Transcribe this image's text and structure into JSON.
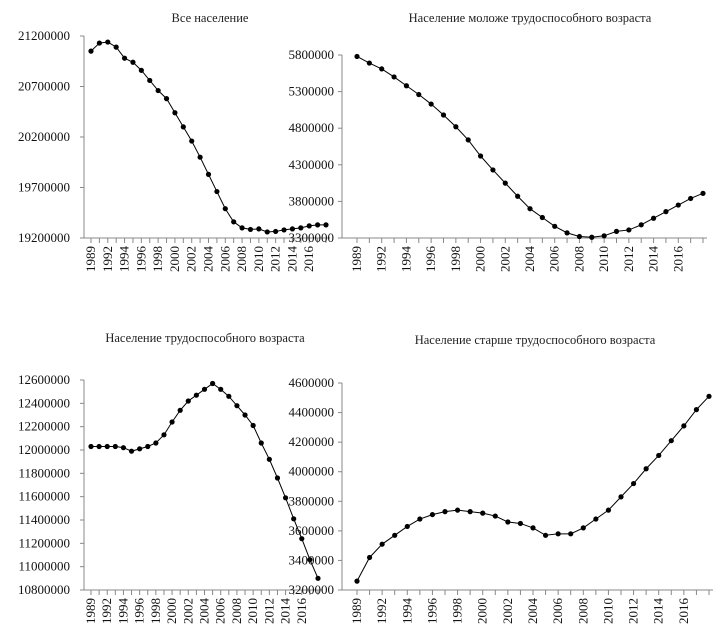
{
  "chart_data": [
    {
      "type": "line",
      "title": "Все население",
      "color": "#000000",
      "categories": [
        "1989",
        null,
        "1992",
        null,
        "1994",
        null,
        "1996",
        null,
        "1998",
        null,
        "2000",
        null,
        "2002",
        null,
        "2004",
        null,
        "2006",
        null,
        "2008",
        null,
        "2010",
        null,
        "2012",
        null,
        "2014",
        null,
        "2016",
        null,
        null
      ],
      "values": [
        21050000,
        21130000,
        21140000,
        21090000,
        20980000,
        20940000,
        20860000,
        20760000,
        20660000,
        20580000,
        20440000,
        20300000,
        20160000,
        20000000,
        19830000,
        19660000,
        19490000,
        19360000,
        19300000,
        19285000,
        19290000,
        19260000,
        19265000,
        19280000,
        19290000,
        19300000,
        19320000,
        19330000,
        19330000
      ],
      "ylim": [
        19200000,
        21200000
      ],
      "yticks": [
        19200000,
        19700000,
        20200000,
        20700000,
        21200000
      ]
    },
    {
      "type": "line",
      "title": "Население моложе трудоспособного возраста",
      "color": "#000000",
      "categories": [
        "1989",
        null,
        "1992",
        null,
        "1994",
        null,
        "1996",
        null,
        "1998",
        null,
        "2000",
        null,
        "2002",
        null,
        "2004",
        null,
        "2006",
        null,
        "2008",
        null,
        "2010",
        null,
        "2012",
        null,
        "2014",
        null,
        "2016",
        null,
        null
      ],
      "values": [
        5780000,
        5690000,
        5610000,
        5500000,
        5380000,
        5260000,
        5130000,
        4980000,
        4820000,
        4640000,
        4420000,
        4230000,
        4050000,
        3870000,
        3700000,
        3580000,
        3460000,
        3370000,
        3320000,
        3310000,
        3330000,
        3390000,
        3410000,
        3480000,
        3570000,
        3660000,
        3750000,
        3840000,
        3910000
      ],
      "ylim": [
        3300000,
        5800000
      ],
      "yticks": [
        3300000,
        3800000,
        4300000,
        4800000,
        5300000,
        5800000
      ]
    },
    {
      "type": "line",
      "title": "Население трудоспособного возраста",
      "color": "#000000",
      "categories": [
        "1989",
        null,
        "1992",
        null,
        "1994",
        null,
        "1996",
        null,
        "1998",
        null,
        "2000",
        null,
        "2002",
        null,
        "2004",
        null,
        "2006",
        null,
        "2008",
        null,
        "2010",
        null,
        "2012",
        null,
        "2014",
        null,
        "2016",
        null,
        null
      ],
      "values": [
        12030000,
        12030000,
        12030000,
        12030000,
        12020000,
        11990000,
        12010000,
        12030000,
        12060000,
        12130000,
        12240000,
        12340000,
        12420000,
        12470000,
        12520000,
        12570000,
        12520000,
        12460000,
        12380000,
        12300000,
        12210000,
        12060000,
        11920000,
        11760000,
        11590000,
        11410000,
        11240000,
        11060000,
        10900000
      ],
      "ylim": [
        10800000,
        12600000
      ],
      "yticks": [
        10800000,
        11000000,
        11200000,
        11400000,
        11600000,
        11800000,
        12000000,
        12200000,
        12400000,
        12600000
      ]
    },
    {
      "type": "line",
      "title": "Население старше трудоспособного возраста",
      "color": "#000000",
      "categories": [
        "1989",
        null,
        "1992",
        null,
        "1994",
        null,
        "1996",
        null,
        "1998",
        null,
        "2000",
        null,
        "2002",
        null,
        "2004",
        null,
        "2006",
        null,
        "2008",
        null,
        "2010",
        null,
        "2012",
        null,
        "2014",
        null,
        "2016",
        null,
        null
      ],
      "values": [
        3260000,
        3420000,
        3510000,
        3570000,
        3630000,
        3680000,
        3710000,
        3730000,
        3740000,
        3730000,
        3720000,
        3700000,
        3660000,
        3650000,
        3620000,
        3570000,
        3580000,
        3580000,
        3620000,
        3680000,
        3740000,
        3830000,
        3920000,
        4020000,
        4110000,
        4210000,
        4310000,
        4420000,
        4510000
      ],
      "ylim": [
        3200000,
        4600000
      ],
      "yticks": [
        3200000,
        3400000,
        3600000,
        3800000,
        4000000,
        4200000,
        4400000,
        4600000
      ]
    }
  ]
}
